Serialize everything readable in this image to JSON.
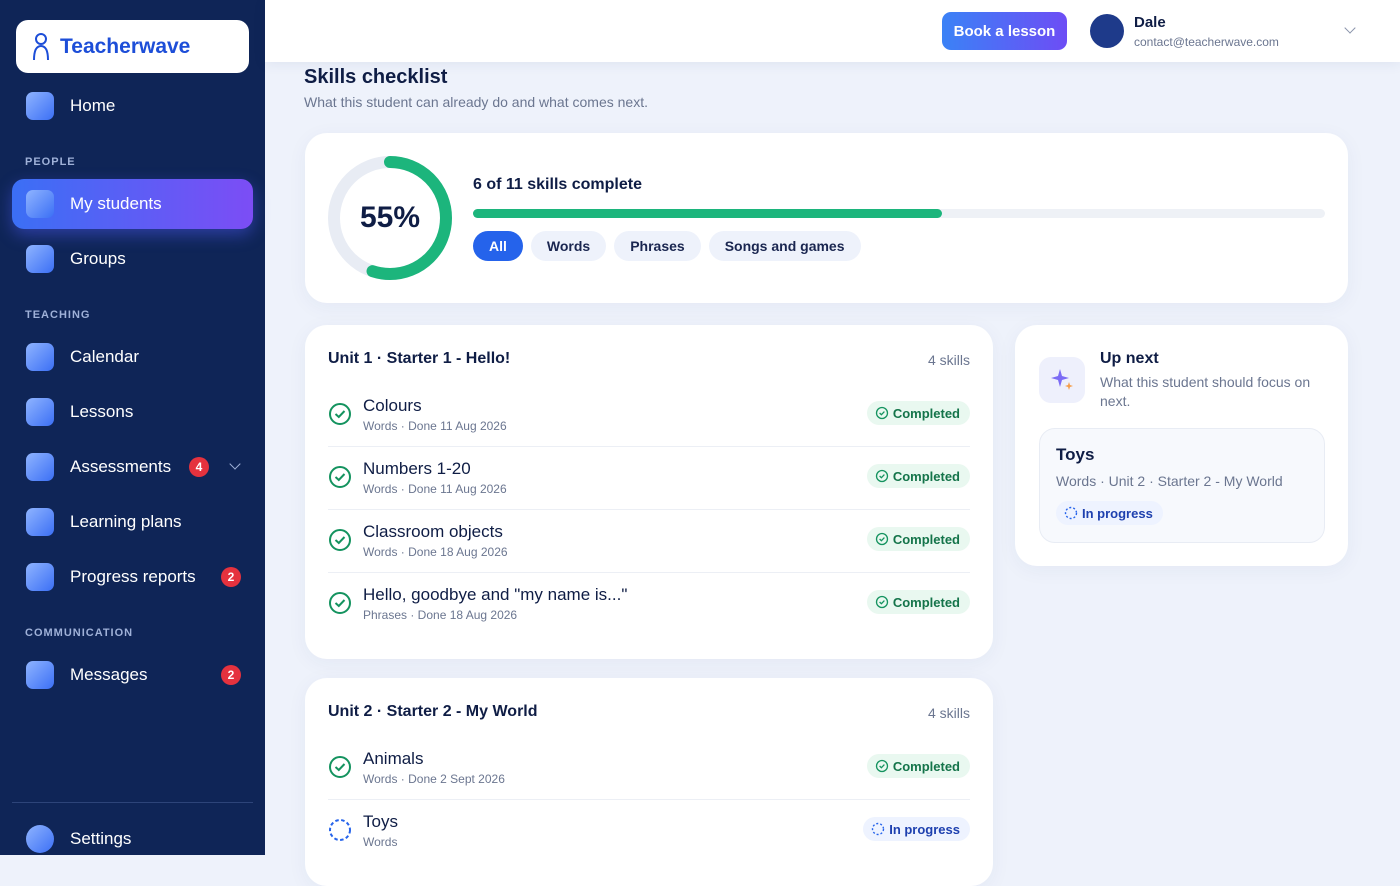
{
  "sidebar": {
    "brand": "Teacherwave",
    "top_items": [
      {
        "label": "Home"
      }
    ],
    "sections": [
      {
        "title": "PEOPLE",
        "items": [
          {
            "label": "My students",
            "active": true
          },
          {
            "label": "Groups"
          }
        ]
      },
      {
        "title": "TEACHING",
        "items": [
          {
            "label": "Calendar"
          },
          {
            "label": "Lessons"
          },
          {
            "label": "Assessments",
            "badge": "4",
            "expandable": true
          },
          {
            "label": "Learning plans"
          },
          {
            "label": "Progress reports",
            "badge": "2"
          }
        ]
      },
      {
        "title": "COMMUNICATION",
        "items": [
          {
            "label": "Messages",
            "badge": "2"
          }
        ]
      }
    ],
    "footer": {
      "label": "Settings"
    }
  },
  "header": {
    "button": "Book a lesson",
    "user": {
      "name": "Dale",
      "email": "contact@teacherwave.com"
    }
  },
  "page": {
    "title": "Skills checklist",
    "subtitle": "What this student can already do and what comes next."
  },
  "summary": {
    "progress": {
      "value": 55,
      "label": "55%"
    },
    "caption": "6 of 11 skills complete",
    "filters": [
      {
        "label": "All",
        "active": true
      },
      {
        "label": "Words"
      },
      {
        "label": "Phrases"
      },
      {
        "label": "Songs and games"
      }
    ]
  },
  "units": [
    {
      "title": "Unit 1 · Starter 1 - Hello!",
      "count": "4 skills",
      "skills": [
        {
          "name": "Colours",
          "meta": "Words · Done 11 Aug 2026",
          "status": "Completed",
          "done": true
        },
        {
          "name": "Numbers 1-20",
          "meta": "Words · Done 11 Aug 2026",
          "status": "Completed",
          "done": true
        },
        {
          "name": "Classroom objects",
          "meta": "Words · Done 18 Aug 2026",
          "status": "Completed",
          "done": true
        },
        {
          "name": "Hello, goodbye and \"my name is...\"",
          "meta": "Phrases · Done 18 Aug 2026",
          "status": "Completed",
          "done": true
        }
      ]
    },
    {
      "title": "Unit 2 · Starter 2 - My World",
      "count": "4 skills",
      "skills": [
        {
          "name": "Animals",
          "meta": "Words · Done 2 Sept 2026",
          "status": "Completed",
          "done": true
        },
        {
          "name": "Toys",
          "meta": "Words",
          "status": "In progress",
          "done": false
        }
      ]
    }
  ],
  "up_next": {
    "title": "Up next",
    "subtitle": "What this student should focus on next.",
    "skill": {
      "name": "Toys",
      "meta": "Words · Unit 2 · Starter 2 - My World",
      "status": "In progress"
    }
  }
}
